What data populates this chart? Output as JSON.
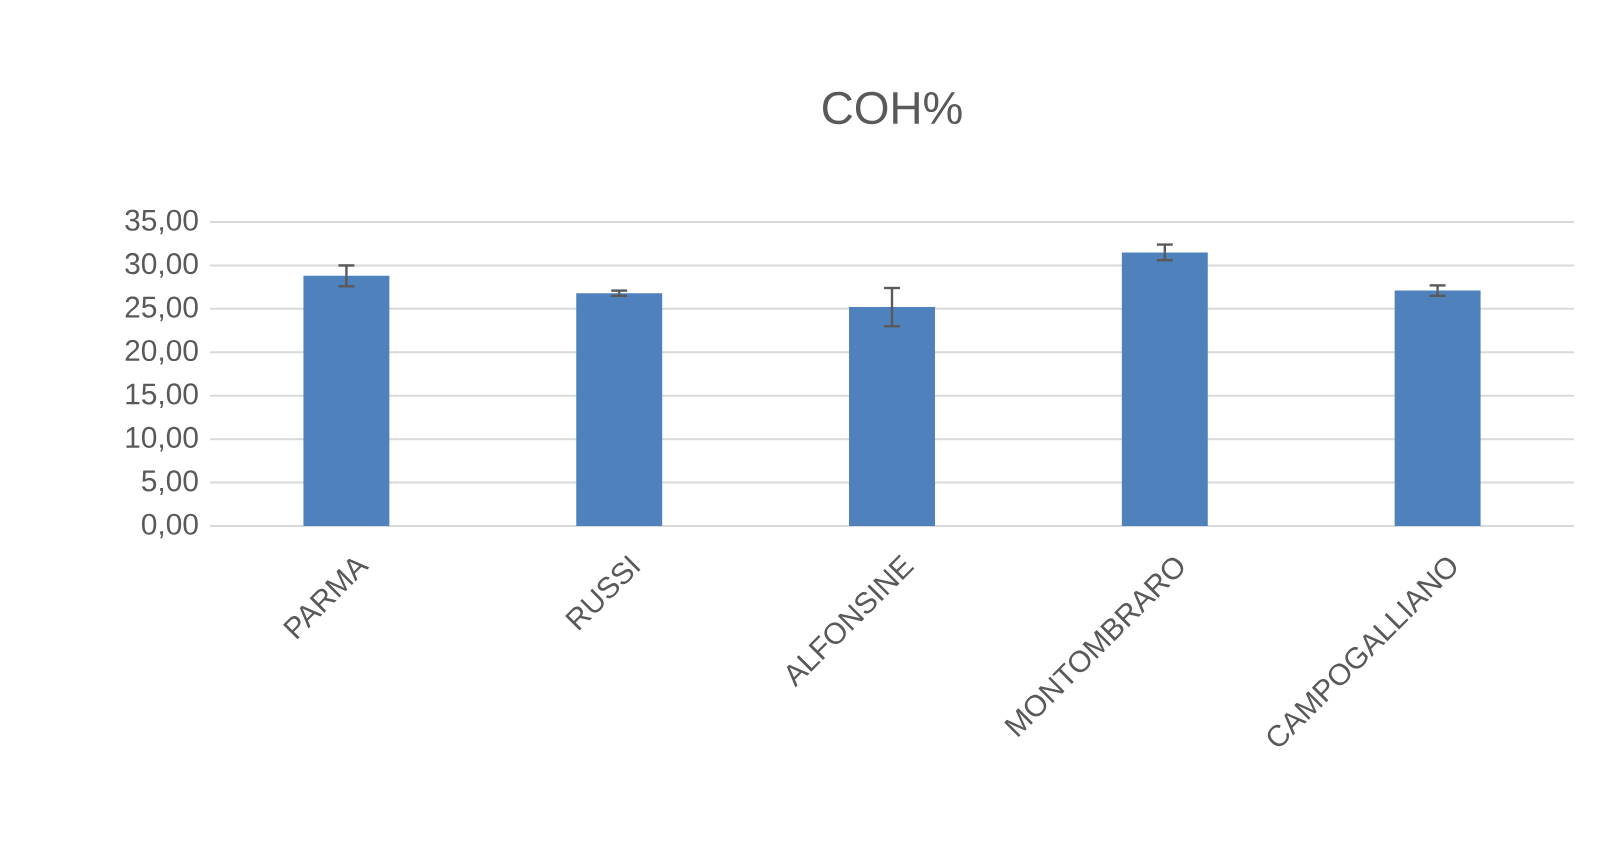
{
  "chart_data": {
    "type": "bar",
    "title": "COH%",
    "categories": [
      "PARMA",
      "RUSSI",
      "ALFONSINE",
      "MONTOMBRARO",
      "CAMPOGALLIANO"
    ],
    "values": [
      28.8,
      26.8,
      25.2,
      31.5,
      27.1
    ],
    "errors": [
      1.2,
      0.3,
      2.2,
      0.9,
      0.6
    ],
    "color": "#4f81bd",
    "ylim": [
      0,
      35
    ],
    "yticks": [
      {
        "value": 0,
        "label": "0,00"
      },
      {
        "value": 5,
        "label": "5,00"
      },
      {
        "value": 10,
        "label": "10,00"
      },
      {
        "value": 15,
        "label": "15,00"
      },
      {
        "value": 20,
        "label": "20,00"
      },
      {
        "value": 25,
        "label": "25,00"
      },
      {
        "value": 30,
        "label": "30,00"
      },
      {
        "value": 35,
        "label": "35,00"
      }
    ],
    "grid": true
  }
}
